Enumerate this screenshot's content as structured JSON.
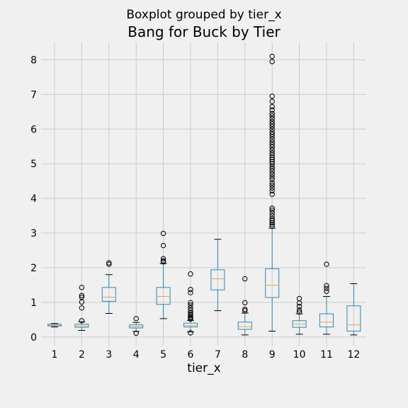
{
  "chart_data": {
    "type": "boxplot",
    "suptitle": "Boxplot grouped by tier_x",
    "title": "Bang for Buck by Tier",
    "xlabel": "tier_x",
    "ylabel": "",
    "ylim": [
      -0.25,
      8.5
    ],
    "yticks": [
      0,
      1,
      2,
      3,
      4,
      5,
      6,
      7,
      8
    ],
    "grid": true,
    "colors": {
      "box": "#2a88b8",
      "median": "#e7a15a",
      "whisker": "#000000",
      "grid": "#cbcbcb",
      "background": "#f0f0f0"
    },
    "categories": [
      "1",
      "2",
      "3",
      "4",
      "5",
      "6",
      "7",
      "8",
      "9",
      "10",
      "11",
      "12"
    ],
    "boxes": [
      {
        "category": "1",
        "whislo": 0.29,
        "q1": 0.32,
        "med": 0.34,
        "q3": 0.37,
        "whishi": 0.39,
        "fliers": []
      },
      {
        "category": "2",
        "whislo": 0.19,
        "q1": 0.28,
        "med": 0.32,
        "q3": 0.37,
        "whishi": 0.44,
        "fliers": [
          0.47,
          0.84,
          1.01,
          1.15,
          1.2,
          1.43
        ]
      },
      {
        "category": "3",
        "whislo": 0.68,
        "q1": 1.03,
        "med": 1.15,
        "q3": 1.43,
        "whishi": 1.8,
        "fliers": [
          2.1,
          2.14
        ]
      },
      {
        "category": "4",
        "whislo": 0.16,
        "q1": 0.26,
        "med": 0.3,
        "q3": 0.35,
        "whishi": 0.42,
        "fliers": [
          0.11,
          0.53
        ]
      },
      {
        "category": "5",
        "whislo": 0.53,
        "q1": 0.94,
        "med": 1.17,
        "q3": 1.43,
        "whishi": 2.12,
        "fliers": [
          2.17,
          2.2,
          2.26,
          2.64,
          2.99
        ]
      },
      {
        "category": "6",
        "whislo": 0.15,
        "q1": 0.29,
        "med": 0.33,
        "q3": 0.4,
        "whishi": 0.48,
        "fliers": [
          0.12,
          0.52,
          0.55,
          0.58,
          0.62,
          0.66,
          0.7,
          0.77,
          0.84,
          0.92,
          0.99,
          1.28,
          1.37,
          1.82
        ]
      },
      {
        "category": "7",
        "whislo": 0.76,
        "q1": 1.36,
        "med": 1.68,
        "q3": 1.94,
        "whishi": 2.82,
        "fliers": []
      },
      {
        "category": "8",
        "whislo": 0.06,
        "q1": 0.22,
        "med": 0.3,
        "q3": 0.43,
        "whishi": 0.69,
        "fliers": [
          0.76,
          0.8,
          0.99,
          1.68
        ]
      },
      {
        "category": "9",
        "whislo": 0.17,
        "q1": 1.14,
        "med": 1.49,
        "q3": 1.97,
        "whishi": 3.14,
        "fliers": [
          3.2,
          3.25,
          3.3,
          3.36,
          3.42,
          3.5,
          3.58,
          3.66,
          3.72,
          4.12,
          4.22,
          4.3,
          4.38,
          4.45,
          4.55,
          4.62,
          4.7,
          4.78,
          4.85,
          4.92,
          5.0,
          5.06,
          5.12,
          5.18,
          5.25,
          5.32,
          5.4,
          5.48,
          5.55,
          5.62,
          5.7,
          5.78,
          5.85,
          5.92,
          6.0,
          6.08,
          6.15,
          6.22,
          6.3,
          6.38,
          6.45,
          6.55,
          6.65,
          6.8,
          6.95,
          7.95,
          8.1
        ]
      },
      {
        "category": "10",
        "whislo": 0.08,
        "q1": 0.28,
        "med": 0.37,
        "q3": 0.47,
        "whishi": 0.67,
        "fliers": [
          0.72,
          0.78,
          0.88,
          0.98,
          1.11
        ]
      },
      {
        "category": "11",
        "whislo": 0.08,
        "q1": 0.29,
        "med": 0.43,
        "q3": 0.67,
        "whishi": 1.17,
        "fliers": [
          1.32,
          1.4,
          1.48,
          2.1
        ]
      },
      {
        "category": "12",
        "whislo": 0.06,
        "q1": 0.17,
        "med": 0.35,
        "q3": 0.9,
        "whishi": 1.54,
        "fliers": []
      }
    ]
  }
}
